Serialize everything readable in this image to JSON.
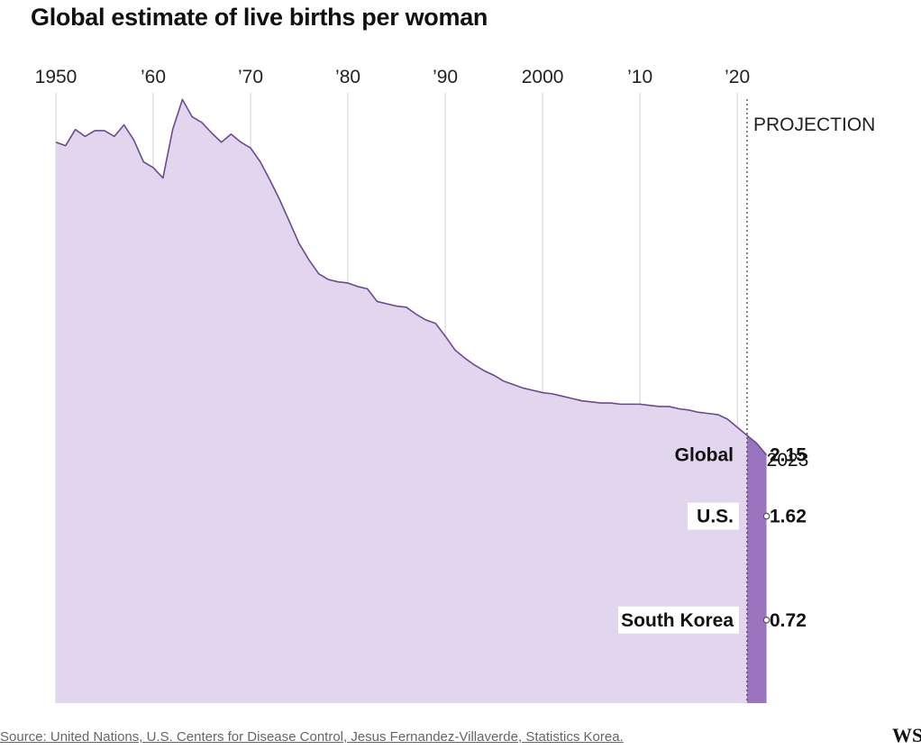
{
  "title": "Global estimate of live births per woman",
  "source": "Source: United Nations, U.S. Centers for Disease Control, Jesus Fernandez-Villaverde, Statistics Korea.",
  "logo": "WSJ",
  "colors": {
    "area_fill": "#e2d6ee",
    "line": "#6b4a92",
    "projection_fill": "#9a74bf",
    "gridline": "#d2d2d2",
    "projection_divider": "#444444"
  },
  "chart_data": {
    "type": "area",
    "title": "Global estimate of live births per woman",
    "x_ticks": [
      {
        "year": 1950,
        "label": "1950"
      },
      {
        "year": 1960,
        "label": "’60"
      },
      {
        "year": 1970,
        "label": "’70"
      },
      {
        "year": 1980,
        "label": "’80"
      },
      {
        "year": 1990,
        "label": "’90"
      },
      {
        "year": 2000,
        "label": "2000"
      },
      {
        "year": 2010,
        "label": "’10"
      },
      {
        "year": 2020,
        "label": "’20"
      }
    ],
    "xlim": [
      1950,
      2022.3
    ],
    "ylim": [
      0,
      5.35
    ],
    "grid": "vertical",
    "projection": {
      "label": "PROJECTION",
      "start_year": 2021
    },
    "series": [
      {
        "x": [
          1950,
          1951,
          1952,
          1953,
          1954,
          1955,
          1956,
          1957,
          1958,
          1959,
          1960,
          1961,
          1962,
          1963,
          1964,
          1965,
          1966,
          1967,
          1968,
          1969,
          1970,
          1971,
          1972,
          1973,
          1974,
          1975,
          1976,
          1977,
          1978,
          1979,
          1980,
          1981,
          1982,
          1983,
          1984,
          1985,
          1986,
          1987,
          1988,
          1989,
          1990,
          1991,
          1992,
          1993,
          1994,
          1995,
          1996,
          1997,
          1998,
          1999,
          2000,
          2001,
          2002,
          2003,
          2004,
          2005,
          2006,
          2007,
          2008,
          2009,
          2010,
          2011,
          2012,
          2013,
          2014,
          2015,
          2016,
          2017,
          2018,
          2019,
          2020,
          2021,
          2022,
          2023
        ],
        "y": [
          4.86,
          4.83,
          4.97,
          4.91,
          4.96,
          4.96,
          4.91,
          5.01,
          4.88,
          4.69,
          4.64,
          4.55,
          4.97,
          5.23,
          5.08,
          5.03,
          4.94,
          4.86,
          4.93,
          4.86,
          4.81,
          4.69,
          4.53,
          4.36,
          4.17,
          3.98,
          3.84,
          3.72,
          3.67,
          3.65,
          3.64,
          3.61,
          3.59,
          3.48,
          3.46,
          3.44,
          3.43,
          3.37,
          3.32,
          3.29,
          3.18,
          3.06,
          2.99,
          2.93,
          2.88,
          2.84,
          2.79,
          2.76,
          2.73,
          2.71,
          2.69,
          2.68,
          2.66,
          2.64,
          2.62,
          2.61,
          2.6,
          2.6,
          2.59,
          2.59,
          2.59,
          2.58,
          2.57,
          2.57,
          2.55,
          2.54,
          2.52,
          2.51,
          2.5,
          2.46,
          2.39,
          2.32,
          2.25,
          2.15
        ]
      }
    ],
    "end_values": {
      "year_label": "2023",
      "year": 2023,
      "items": [
        {
          "name": "Global",
          "value": 2.15,
          "display": "2.15"
        },
        {
          "name": "U.S.",
          "value": 1.62,
          "display": "1.62"
        },
        {
          "name": "South Korea",
          "value": 0.72,
          "display": "0.72"
        }
      ]
    }
  }
}
